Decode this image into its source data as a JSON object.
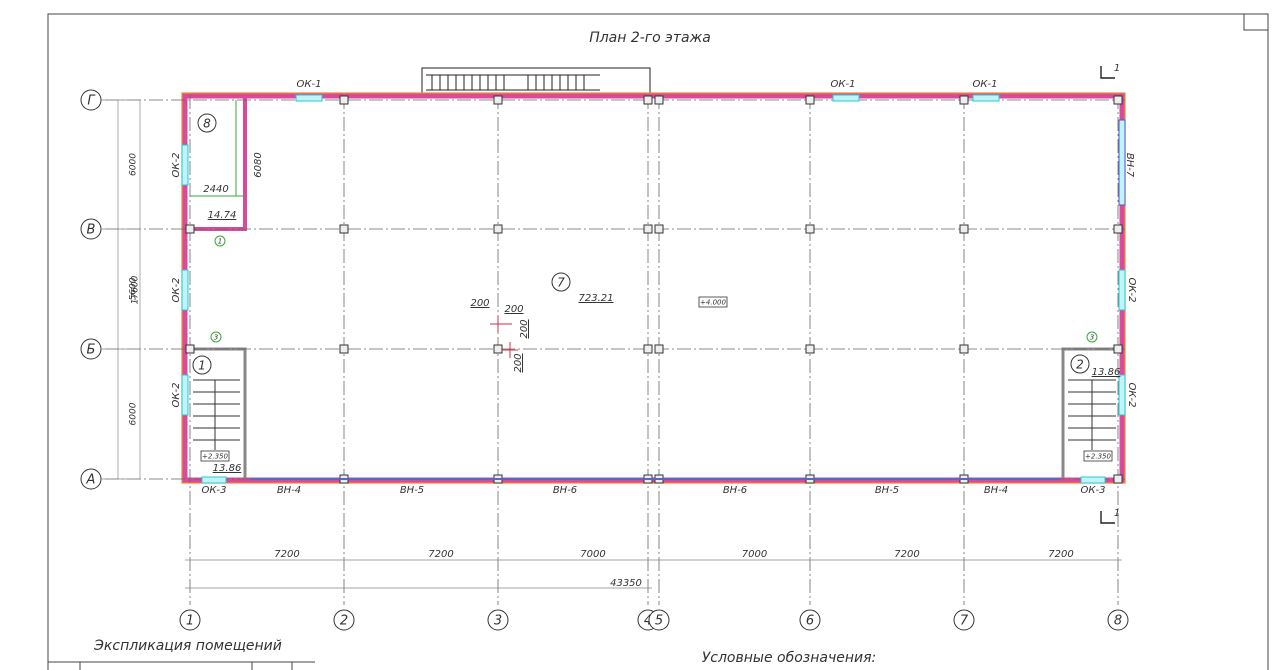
{
  "title": "План 2-го этажа",
  "axes": {
    "rows": [
      "Г",
      "В",
      "Б",
      "А"
    ],
    "columns": [
      "1",
      "2",
      "3",
      "4",
      "5",
      "6",
      "7",
      "8"
    ]
  },
  "dimensions": {
    "left": [
      "6000",
      "5600",
      "6000"
    ],
    "left_total": "17600",
    "bottom": [
      "7200",
      "7200",
      "7000",
      "7000",
      "7200",
      "7200"
    ],
    "bottom_total": "43350"
  },
  "openings": [
    "ОК-1",
    "ОК-1",
    "ОК-1",
    "ОК-2",
    "ОК-2",
    "ОК-2",
    "ОК-2",
    "ОК-2",
    "ВН-7",
    "ОК-3",
    "ВН-4",
    "ВН-5",
    "ВН-6",
    "ВН-6",
    "ВН-5",
    "ВН-4",
    "ОК-3"
  ],
  "rooms": [
    {
      "number": "8",
      "area": "14.74"
    },
    {
      "number": "7",
      "area": "723.21"
    },
    {
      "number": "1",
      "area": "13.86"
    },
    {
      "number": "2",
      "area": "13.86"
    }
  ],
  "room8_dims": [
    "6080",
    "2440"
  ],
  "levels": [
    "+4.000",
    "+2.350",
    "+2.350"
  ],
  "markers": [
    "200",
    "200",
    "200",
    "200"
  ],
  "callouts": [
    "1",
    "3",
    "3"
  ],
  "section_marks": [
    "1",
    "1"
  ],
  "footer": {
    "explication_title": "Экспликация помещений",
    "legend_title": "Условные обозначения:"
  }
}
